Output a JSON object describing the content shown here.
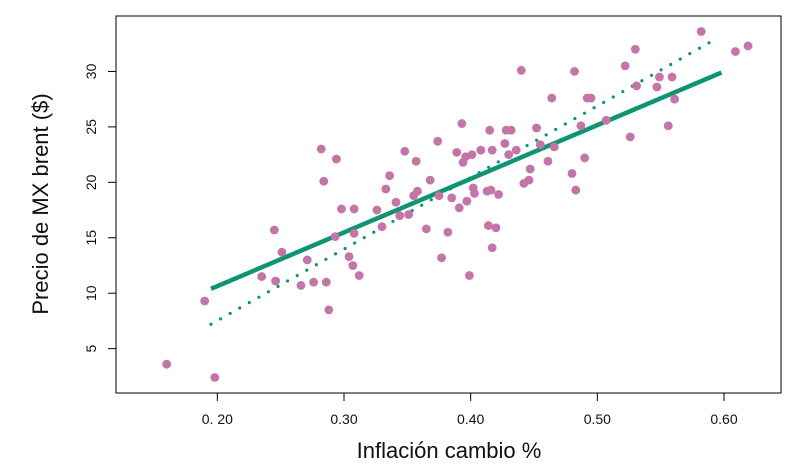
{
  "chart_data": {
    "type": "scatter",
    "title": "",
    "xlabel": "Inflación cambio %",
    "ylabel": "Precio de  MX brent ($)",
    "xlim": [
      0.12,
      0.645
    ],
    "ylim": [
      1.0,
      35.0
    ],
    "x_ticks": [
      {
        "value": 0.2,
        "label": "0. 20"
      },
      {
        "value": 0.3,
        "label": "0.30"
      },
      {
        "value": 0.4,
        "label": "0.40"
      },
      {
        "value": 0.5,
        "label": "0.50"
      },
      {
        "value": 0.6,
        "label": "0.60"
      }
    ],
    "y_ticks": [
      5,
      10,
      15,
      20,
      25,
      30
    ],
    "grid": false,
    "colors": {
      "points": "#c375a8",
      "lines": "#0e9470"
    },
    "points": [
      [
        0.16,
        3.6
      ],
      [
        0.19,
        9.3
      ],
      [
        0.198,
        2.4
      ],
      [
        0.235,
        11.5
      ],
      [
        0.245,
        15.7
      ],
      [
        0.246,
        11.1
      ],
      [
        0.251,
        13.7
      ],
      [
        0.266,
        10.7
      ],
      [
        0.271,
        13.0
      ],
      [
        0.276,
        11.0
      ],
      [
        0.282,
        23.0
      ],
      [
        0.284,
        20.1
      ],
      [
        0.286,
        11.0
      ],
      [
        0.288,
        8.5
      ],
      [
        0.293,
        15.1
      ],
      [
        0.294,
        22.1
      ],
      [
        0.298,
        17.6
      ],
      [
        0.304,
        13.3
      ],
      [
        0.307,
        12.5
      ],
      [
        0.308,
        17.6
      ],
      [
        0.312,
        11.6
      ],
      [
        0.308,
        15.4
      ],
      [
        0.326,
        17.5
      ],
      [
        0.33,
        16.0
      ],
      [
        0.333,
        19.4
      ],
      [
        0.336,
        20.6
      ],
      [
        0.341,
        18.2
      ],
      [
        0.344,
        17.0
      ],
      [
        0.348,
        22.8
      ],
      [
        0.351,
        17.1
      ],
      [
        0.355,
        18.8
      ],
      [
        0.357,
        21.9
      ],
      [
        0.358,
        19.2
      ],
      [
        0.365,
        15.8
      ],
      [
        0.368,
        20.2
      ],
      [
        0.374,
        23.7
      ],
      [
        0.375,
        18.8
      ],
      [
        0.377,
        13.2
      ],
      [
        0.382,
        15.5
      ],
      [
        0.385,
        18.6
      ],
      [
        0.389,
        22.7
      ],
      [
        0.391,
        17.7
      ],
      [
        0.393,
        25.3
      ],
      [
        0.394,
        21.8
      ],
      [
        0.396,
        22.3
      ],
      [
        0.397,
        18.3
      ],
      [
        0.399,
        11.6
      ],
      [
        0.401,
        22.5
      ],
      [
        0.402,
        19.5
      ],
      [
        0.403,
        19.0
      ],
      [
        0.408,
        22.9
      ],
      [
        0.413,
        19.2
      ],
      [
        0.414,
        16.1
      ],
      [
        0.415,
        24.7
      ],
      [
        0.416,
        19.3
      ],
      [
        0.417,
        22.9
      ],
      [
        0.417,
        14.1
      ],
      [
        0.42,
        15.9
      ],
      [
        0.422,
        18.9
      ],
      [
        0.427,
        23.5
      ],
      [
        0.428,
        24.7
      ],
      [
        0.43,
        22.5
      ],
      [
        0.432,
        24.7
      ],
      [
        0.436,
        22.9
      ],
      [
        0.44,
        30.1
      ],
      [
        0.442,
        19.9
      ],
      [
        0.446,
        20.2
      ],
      [
        0.447,
        21.2
      ],
      [
        0.452,
        24.9
      ],
      [
        0.455,
        23.4
      ],
      [
        0.461,
        21.9
      ],
      [
        0.464,
        27.6
      ],
      [
        0.466,
        23.2
      ],
      [
        0.48,
        20.8
      ],
      [
        0.482,
        30.0
      ],
      [
        0.483,
        19.3
      ],
      [
        0.487,
        25.1
      ],
      [
        0.49,
        22.2
      ],
      [
        0.492,
        27.6
      ],
      [
        0.495,
        27.6
      ],
      [
        0.507,
        25.6
      ],
      [
        0.522,
        30.5
      ],
      [
        0.526,
        24.1
      ],
      [
        0.53,
        32.0
      ],
      [
        0.531,
        28.7
      ],
      [
        0.547,
        28.6
      ],
      [
        0.549,
        29.5
      ],
      [
        0.556,
        25.1
      ],
      [
        0.559,
        29.5
      ],
      [
        0.561,
        27.5
      ],
      [
        0.582,
        33.6
      ],
      [
        0.609,
        31.8
      ],
      [
        0.619,
        32.3
      ]
    ],
    "fit_lines": [
      {
        "style": "solid",
        "x": [
          0.195,
          0.598
        ],
        "y": [
          10.4,
          29.9
        ]
      },
      {
        "style": "dotted",
        "x": [
          0.195,
          0.59
        ],
        "y": [
          7.2,
          32.7
        ]
      }
    ]
  }
}
